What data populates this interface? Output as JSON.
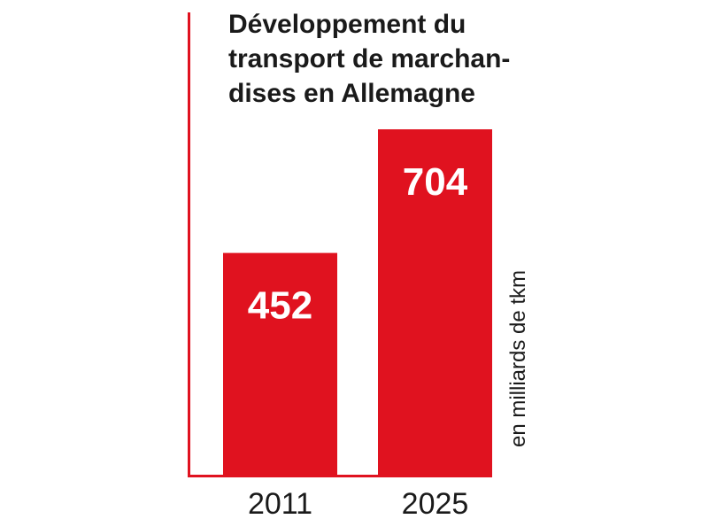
{
  "chart_data": {
    "type": "bar",
    "title_lines": [
      "Développement du",
      "transport de marchan-",
      "dises en Allemagne"
    ],
    "categories": [
      "2011",
      "2025"
    ],
    "values": [
      452,
      704
    ],
    "data_labels": [
      "452",
      "704"
    ],
    "ylabel": "en milliards de tkm",
    "xlabel": "",
    "ylim": [
      0,
      704
    ],
    "grid": false,
    "legend": "none"
  },
  "colors": {
    "bar": "#e0121f",
    "axis": "#e0121f",
    "text": "#1a1a1a",
    "label": "#ffffff"
  }
}
